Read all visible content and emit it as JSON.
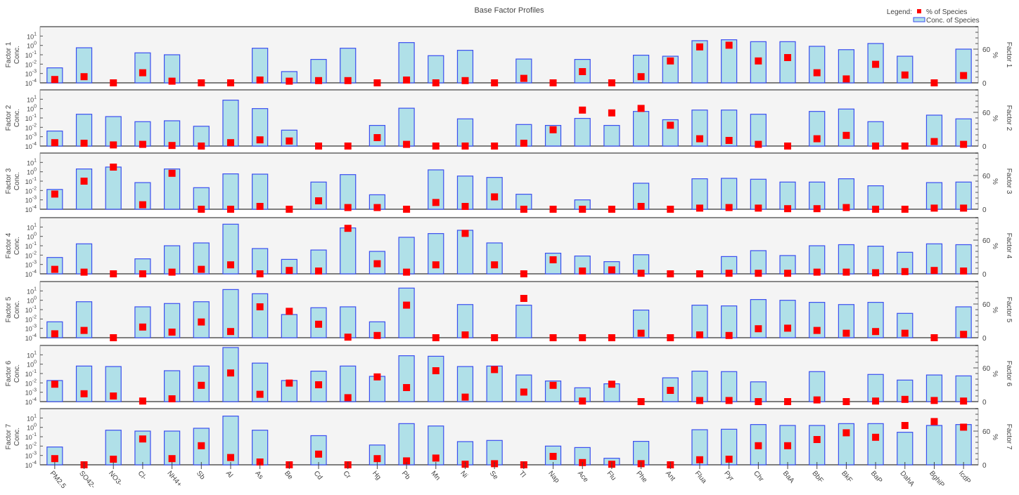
{
  "chart_data": {
    "type": "bar",
    "title": "Base Factor Profiles",
    "legend": {
      "label": "Legend:",
      "percent": "% of Species",
      "conc": "Conc. of Species",
      "placement": "top-right"
    },
    "left_axis": {
      "label": "Conc.",
      "scale": "log",
      "ylim": [
        0.0001,
        100
      ],
      "tick_labels": [
        {
          "base": "10",
          "exp": "-4"
        },
        {
          "base": "10",
          "exp": "-3"
        },
        {
          "base": "10",
          "exp": "-2"
        },
        {
          "base": "10",
          "exp": "-1"
        },
        {
          "base": "10",
          "exp": "0"
        },
        {
          "base": "10",
          "exp": "1"
        }
      ]
    },
    "right_axis": {
      "label": "%",
      "ylim": [
        0,
        100
      ],
      "tick_labels": [
        "0",
        "60"
      ],
      "tick_values": [
        0,
        60
      ]
    },
    "categories": [
      "PM2.5",
      "SO42-",
      "NO3-",
      "Cl-",
      "NH4+",
      "Sb",
      "Al",
      "As",
      "Be",
      "Cd",
      "Cr",
      "Hg",
      "Pb",
      "Mn",
      "Ni",
      "Se",
      "Tl",
      "Nap",
      "Ace",
      "Flu",
      "Phe",
      "Ant",
      "Flua",
      "Pyr",
      "Chr",
      "BaA",
      "BbF",
      "BkF",
      "BaP",
      "DahA",
      "BghiP",
      "IcdP"
    ],
    "colors": {
      "bar_fill": "#b0e0e8",
      "bar_stroke": "#3b4ef0",
      "marker": "#ff0000",
      "panel_bg": "#f4f4f4"
    },
    "factors": [
      {
        "name": "Factor 1",
        "conc": [
          0.004,
          0.56,
          null,
          0.16,
          0.1,
          null,
          null,
          0.5,
          0.0016,
          0.032,
          0.5,
          null,
          2.0,
          0.08,
          0.3,
          null,
          0.035,
          null,
          0.032,
          null,
          0.09,
          0.07,
          3.2,
          4,
          2.5,
          2.5,
          0.8,
          0.35,
          1.6,
          0.07,
          null,
          0.4
        ],
        "percent": [
          6,
          11,
          0,
          18,
          3,
          0,
          0,
          5,
          3,
          4,
          4,
          0,
          5,
          0,
          4,
          0,
          8,
          0,
          20,
          0,
          11,
          39,
          64,
          67,
          39,
          45,
          18,
          7,
          33,
          14,
          0,
          13
        ]
      },
      {
        "name": "Factor 2",
        "conc": [
          0.004,
          0.25,
          0.14,
          0.04,
          0.05,
          0.013,
          8,
          1.0,
          0.005,
          null,
          null,
          0.016,
          1.1,
          null,
          0.08,
          null,
          0.02,
          0.016,
          0.09,
          0.016,
          0.5,
          0.065,
          0.7,
          0.7,
          0.25,
          null,
          0.5,
          0.9,
          0.04,
          null,
          0.2,
          0.08
        ],
        "percent": [
          6,
          5,
          2,
          3,
          1,
          0,
          6,
          11,
          9,
          0,
          0,
          15,
          3,
          0,
          0,
          0,
          5,
          29,
          64,
          59,
          67,
          37,
          13,
          10,
          3,
          0,
          13,
          19,
          0,
          0,
          8,
          3
        ]
      },
      {
        "name": "Factor 3",
        "conc": [
          0.013,
          2.0,
          3.2,
          0.07,
          2.0,
          0.02,
          0.6,
          0.56,
          null,
          0.08,
          0.5,
          0.0035,
          null,
          1.6,
          0.35,
          0.25,
          0.004,
          null,
          0.001,
          null,
          0.06,
          null,
          0.18,
          0.2,
          0.16,
          0.08,
          0.08,
          0.18,
          0.032,
          null,
          0.07,
          0.08
        ],
        "percent": [
          27,
          50,
          75,
          8,
          64,
          0,
          0,
          5,
          0,
          15,
          3,
          3,
          0,
          12,
          5,
          22,
          0,
          0,
          0,
          0,
          5,
          0,
          2,
          3,
          2,
          1,
          1,
          3,
          0,
          0,
          2,
          2
        ]
      },
      {
        "name": "Factor 4",
        "conc": [
          0.0056,
          0.16,
          null,
          0.004,
          0.1,
          0.2,
          20,
          0.05,
          0.0035,
          0.035,
          8,
          0.025,
          0.8,
          2.0,
          4.5,
          0.2,
          null,
          0.016,
          0.008,
          0.002,
          0.011,
          null,
          null,
          0.007,
          0.03,
          0.009,
          0.1,
          0.13,
          0.09,
          0.02,
          0.16,
          0.13
        ],
        "percent": [
          8,
          3,
          0,
          0,
          3,
          8,
          16,
          0,
          6,
          5,
          81,
          18,
          3,
          16,
          72,
          16,
          0,
          25,
          5,
          7,
          1,
          0,
          0,
          1,
          1,
          1,
          3,
          3,
          2,
          4,
          6,
          5
        ]
      },
      {
        "name": "Factor 5",
        "conc": [
          0.005,
          0.7,
          null,
          0.2,
          0.45,
          0.7,
          14,
          5,
          0.03,
          0.16,
          0.2,
          0.005,
          20,
          null,
          0.35,
          null,
          0.3,
          null,
          null,
          null,
          0.09,
          null,
          0.3,
          0.25,
          1.2,
          1.0,
          0.6,
          0.35,
          0.6,
          0.04,
          null,
          0.2
        ],
        "percent": [
          7,
          13,
          0,
          19,
          10,
          28,
          11,
          55,
          47,
          24,
          1,
          4,
          58,
          0,
          5,
          0,
          70,
          0,
          0,
          0,
          8,
          0,
          5,
          4,
          16,
          17,
          13,
          8,
          11,
          8,
          0,
          6
        ]
      },
      {
        "name": "Factor 6",
        "conc": [
          0.018,
          0.63,
          0.56,
          null,
          0.2,
          0.63,
          60,
          1.3,
          0.018,
          0.18,
          0.63,
          0.05,
          8,
          7,
          0.56,
          0.63,
          0.07,
          0.016,
          0.003,
          0.008,
          null,
          0.035,
          0.18,
          0.16,
          0.013,
          null,
          0.16,
          null,
          0.08,
          0.02,
          0.07,
          0.056
        ],
        "percent": [
          31,
          14,
          10,
          1,
          5,
          29,
          51,
          13,
          33,
          30,
          7,
          44,
          25,
          55,
          8,
          57,
          17,
          29,
          1,
          31,
          0,
          20,
          2,
          2,
          0,
          0,
          3,
          0,
          1,
          4,
          2,
          1
        ]
      },
      {
        "name": "Factor 7",
        "conc": [
          0.008,
          null,
          0.5,
          0.4,
          0.4,
          0.8,
          16,
          0.5,
          null,
          0.13,
          null,
          0.013,
          2.5,
          1.4,
          0.03,
          0.04,
          null,
          0.01,
          0.007,
          0.0005,
          0.032,
          null,
          0.56,
          0.63,
          2.0,
          1.6,
          1.6,
          2.5,
          2.5,
          0.3,
          1.6,
          2.0
        ],
        "percent": [
          11,
          0,
          10,
          46,
          11,
          34,
          13,
          5,
          0,
          19,
          0,
          11,
          7,
          12,
          1,
          2,
          0,
          15,
          4,
          1,
          2,
          0,
          9,
          10,
          34,
          34,
          45,
          57,
          49,
          70,
          77,
          67
        ]
      }
    ]
  }
}
